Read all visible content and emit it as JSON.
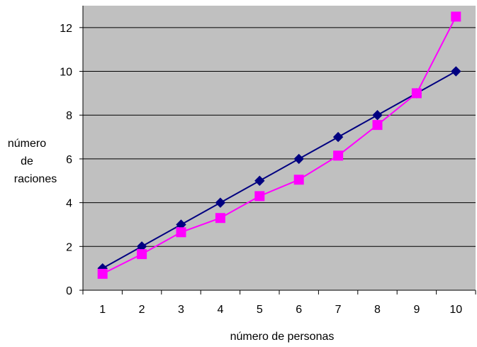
{
  "chart_data": {
    "type": "line",
    "title": "",
    "xlabel": "número de personas",
    "ylabel": [
      "número",
      "de",
      "raciones"
    ],
    "categories": [
      "1",
      "2",
      "3",
      "4",
      "5",
      "6",
      "7",
      "8",
      "9",
      "10"
    ],
    "ylim": [
      0,
      13
    ],
    "yticks": [
      0,
      2,
      4,
      6,
      8,
      10,
      12
    ],
    "grid": "horizontal",
    "legend": "none",
    "plot_background": "#c0c0c0",
    "series": [
      {
        "color": "#000080",
        "marker": "diamond",
        "values": [
          1,
          2,
          3,
          4,
          5,
          6,
          7,
          8,
          9,
          10
        ]
      },
      {
        "color": "#ff00ff",
        "marker": "square",
        "values": [
          0.75,
          1.65,
          2.65,
          3.3,
          4.3,
          5.05,
          6.15,
          7.55,
          9.0,
          12.5
        ]
      }
    ]
  }
}
